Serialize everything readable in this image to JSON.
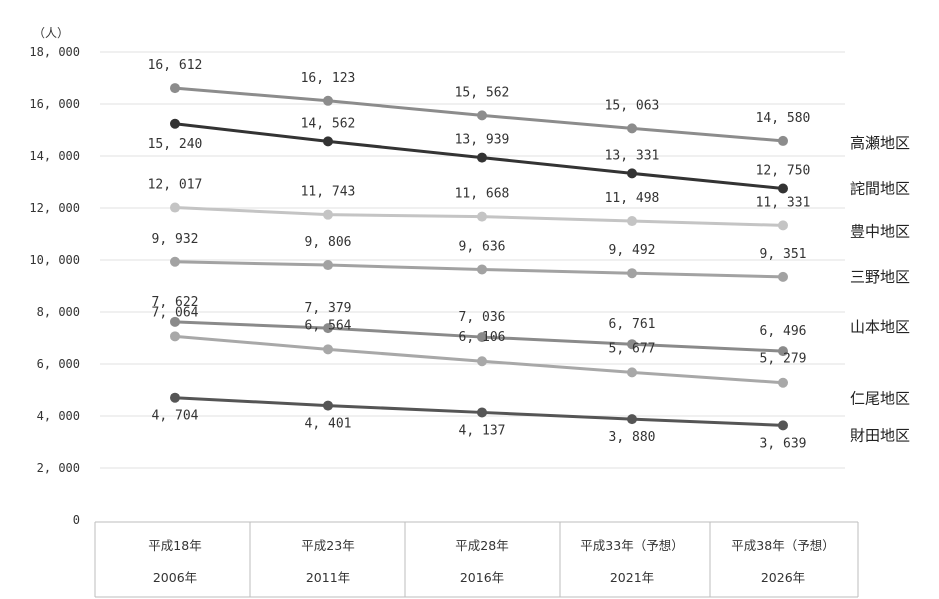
{
  "chart_data": {
    "type": "line",
    "unit": "（人）",
    "ylim": [
      0,
      18000
    ],
    "y_ticks": [
      "0",
      "2, 000",
      "4, 000",
      "6, 000",
      "8, 000",
      "10, 000",
      "12, 000",
      "14, 000",
      "16, 000",
      "18, 000"
    ],
    "grid": true,
    "legend": "labels at right end of each line",
    "categories": [
      {
        "line1": "平成18年",
        "line2": "2006年"
      },
      {
        "line1": "平成23年",
        "line2": "2011年"
      },
      {
        "line1": "平成28年",
        "line2": "2016年"
      },
      {
        "line1": "平成33年（予想）",
        "line2": "2021年"
      },
      {
        "line1": "平成38年（予想）",
        "line2": "2026年"
      }
    ],
    "series": [
      {
        "name": "高瀬地区",
        "values": [
          16612,
          16123,
          15562,
          15063,
          14580
        ],
        "labels": [
          "16, 612",
          "16, 123",
          "15, 562",
          "15, 063",
          "14, 580"
        ],
        "color": "#8c8c8c"
      },
      {
        "name": "詫間地区",
        "values": [
          15240,
          14562,
          13939,
          13331,
          12750
        ],
        "labels": [
          "15, 240",
          "14, 562",
          "13, 939",
          "13, 331",
          "12, 750"
        ],
        "color": "#333333"
      },
      {
        "name": "豊中地区",
        "values": [
          12017,
          11743,
          11668,
          11498,
          11331
        ],
        "labels": [
          "12, 017",
          "11, 743",
          "11, 668",
          "11, 498",
          "11, 331"
        ],
        "color": "#c4c4c4"
      },
      {
        "name": "三野地区",
        "values": [
          9932,
          9806,
          9636,
          9492,
          9351
        ],
        "labels": [
          "9, 932",
          "9, 806",
          "9, 636",
          "9, 492",
          "9, 351"
        ],
        "color": "#a2a2a2"
      },
      {
        "name": "山本地区",
        "values": [
          7622,
          7379,
          7036,
          6761,
          6496
        ],
        "labels": [
          "7, 622",
          "7, 379",
          "7, 036",
          "6, 761",
          "6, 496"
        ],
        "color": "#8a8a8a"
      },
      {
        "name": "仁尾地区",
        "values": [
          7064,
          6564,
          6106,
          5677,
          5279
        ],
        "labels": [
          "7, 064",
          "6, 564",
          "6, 106",
          "5, 677",
          "5, 279"
        ],
        "color": "#a8a8a8"
      },
      {
        "name": "財田地区",
        "values": [
          4704,
          4401,
          4137,
          3880,
          3639
        ],
        "labels": [
          "4, 704",
          "4, 401",
          "4, 137",
          "3, 880",
          "3, 639"
        ],
        "color": "#555555"
      }
    ]
  }
}
